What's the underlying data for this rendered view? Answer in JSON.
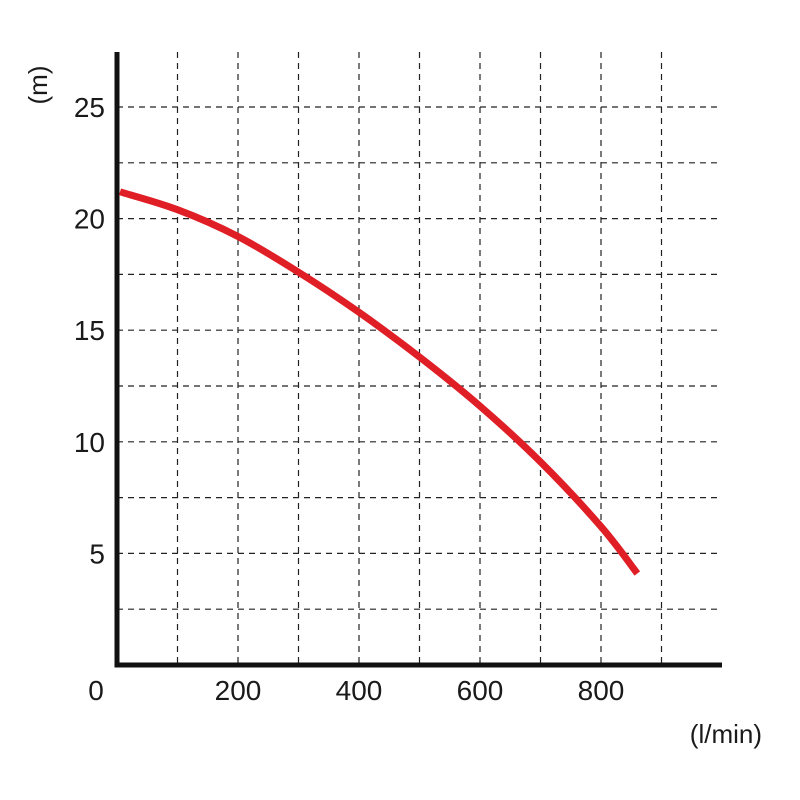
{
  "chart_data": {
    "type": "line",
    "title": "",
    "xlabel": "(l/min)",
    "ylabel": "(m)",
    "xlim": [
      0,
      1000
    ],
    "ylim": [
      0,
      25
    ],
    "x_ticks": [
      0,
      200,
      400,
      600,
      800
    ],
    "y_ticks": [
      5,
      10,
      15,
      20,
      25
    ],
    "x_tick_labels": [
      "0",
      "200",
      "400",
      "600",
      "800"
    ],
    "y_tick_labels": [
      "5",
      "10",
      "15",
      "20",
      "25"
    ],
    "grid": true,
    "grid_style": "dashed",
    "series": [
      {
        "color": "#e01e26",
        "x": [
          0,
          100,
          200,
          300,
          400,
          500,
          600,
          700,
          800,
          860
        ],
        "y": [
          21.2,
          20.4,
          19.2,
          17.6,
          15.8,
          13.8,
          11.6,
          9.1,
          6.2,
          4.1
        ]
      }
    ]
  }
}
